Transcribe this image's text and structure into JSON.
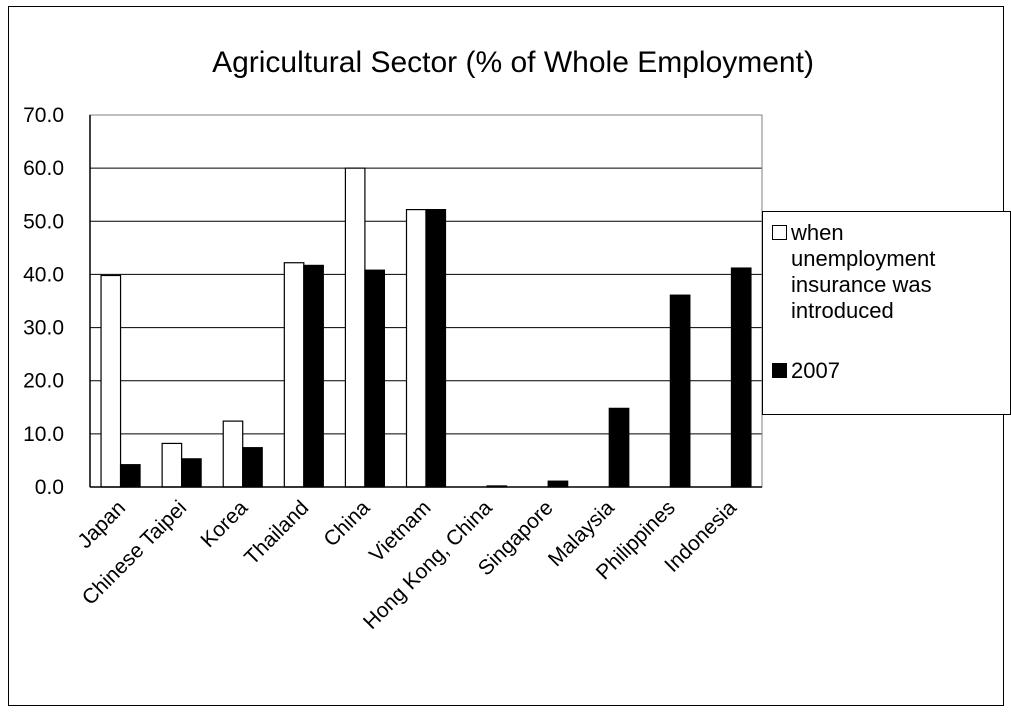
{
  "chart_data": {
    "type": "bar",
    "title": "Agricultural Sector (% of Whole Employment)",
    "xlabel": "",
    "ylabel": "",
    "ylim": [
      0,
      70
    ],
    "yticks": [
      "0.0",
      "10.0",
      "20.0",
      "30.0",
      "40.0",
      "50.0",
      "60.0",
      "70.0"
    ],
    "grid": true,
    "legend_position": "right",
    "categories": [
      "Japan",
      "Chinese Taipei",
      "Korea",
      "Thailand",
      "China",
      "Vietnam",
      "Hong Kong, China",
      "Singapore",
      "Malaysia",
      "Philippines",
      "Indonesia"
    ],
    "series": [
      {
        "name": "when unemployment insurance was introduced",
        "legend_lines": [
          "when",
          "unemployment",
          "insurance was",
          "introduced"
        ],
        "color": "#ffffff",
        "values": [
          39.8,
          8.2,
          12.4,
          42.2,
          60.0,
          52.2,
          null,
          null,
          null,
          null,
          null
        ]
      },
      {
        "name": "2007",
        "legend_lines": [
          "2007"
        ],
        "color": "#000000",
        "values": [
          4.2,
          5.3,
          7.4,
          41.7,
          40.8,
          52.2,
          0.2,
          1.1,
          14.8,
          36.1,
          41.2
        ]
      }
    ]
  }
}
